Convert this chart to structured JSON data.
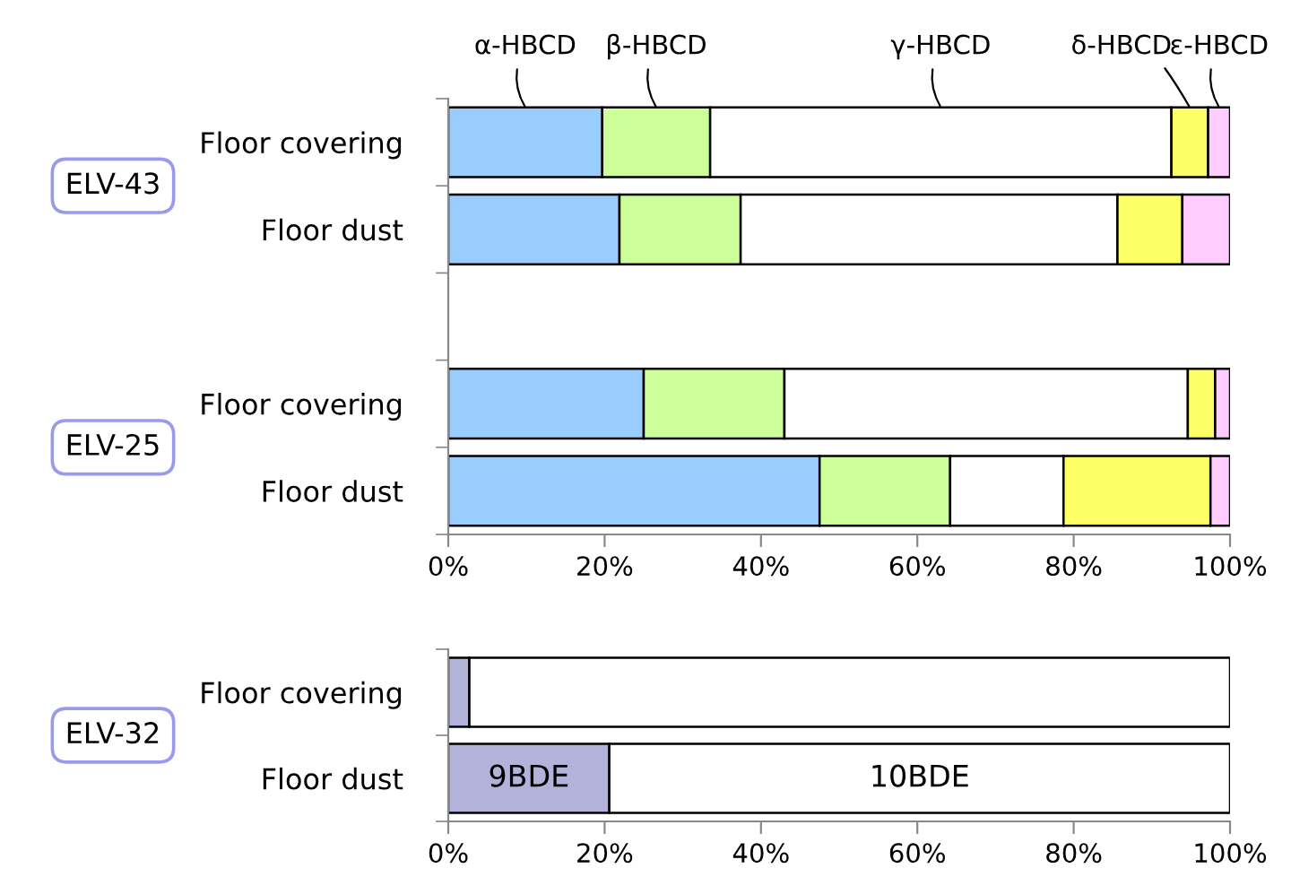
{
  "chart_data": [
    {
      "type": "bar",
      "orientation": "horizontal",
      "stacked": true,
      "categories": [
        "Floor covering",
        "Floor dust",
        null,
        "Floor covering",
        "Floor dust"
      ],
      "series": [
        {
          "name": "α-HBCD",
          "color": "#99ccff",
          "values": [
            19.7,
            21.9,
            null,
            25.0,
            47.5
          ]
        },
        {
          "name": "β-HBCD",
          "color": "#ccff99",
          "values": [
            13.8,
            15.5,
            null,
            18.0,
            16.7
          ]
        },
        {
          "name": "γ-HBCD",
          "color": "#ffffff",
          "values": [
            59.0,
            48.2,
            null,
            51.6,
            14.5
          ]
        },
        {
          "name": "δ-HBCD",
          "color": "#ffff66",
          "values": [
            4.7,
            8.3,
            null,
            3.5,
            18.8
          ]
        },
        {
          "name": "ε-HBCD",
          "color": "#ffccff",
          "values": [
            2.8,
            6.1,
            null,
            1.9,
            2.5
          ]
        }
      ],
      "xlim": [
        0,
        100
      ],
      "xticks": [
        {
          "value": 0,
          "label": "0%"
        },
        {
          "value": 20,
          "label": "20%"
        },
        {
          "value": 40,
          "label": "40%"
        },
        {
          "value": 60,
          "label": "60%"
        },
        {
          "value": 80,
          "label": "80%"
        },
        {
          "value": 100,
          "label": "100%"
        }
      ],
      "grid": false,
      "annotations": [
        "ELV-43",
        "ELV-25"
      ]
    },
    {
      "type": "bar",
      "orientation": "horizontal",
      "stacked": true,
      "categories": [
        "Floor covering",
        "Floor dust"
      ],
      "series": [
        {
          "name": "9BDE",
          "color": "#b3b3d9",
          "values": [
            2.7,
            20.6
          ]
        },
        {
          "name": "10BDE",
          "color": "#ffffff",
          "values": [
            97.3,
            79.4
          ]
        }
      ],
      "xlim": [
        0,
        100
      ],
      "xticks": [
        {
          "value": 0,
          "label": "0%"
        },
        {
          "value": 20,
          "label": "20%"
        },
        {
          "value": 40,
          "label": "40%"
        },
        {
          "value": 60,
          "label": "60%"
        },
        {
          "value": 80,
          "label": "80%"
        },
        {
          "value": 100,
          "label": "100%"
        }
      ],
      "grid": false,
      "annotations": [
        "ELV-32"
      ]
    }
  ]
}
